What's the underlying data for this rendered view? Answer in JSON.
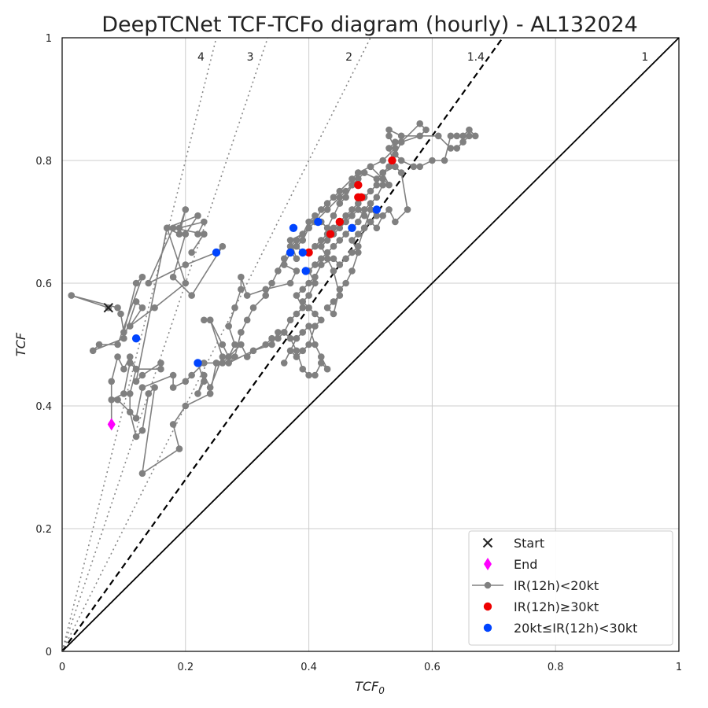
{
  "chart_data": {
    "type": "scatter",
    "title": "DeepTCNet TCF-TCFo diagram (hourly) - AL132024",
    "xlabel": "TCF",
    "xlabel_sub": "0",
    "ylabel": "TCF",
    "xlim": [
      0,
      1
    ],
    "ylim": [
      0,
      1
    ],
    "grid": true,
    "legend_position": "bottom-right",
    "x_ticks": [
      {
        "value": 0,
        "label": "0"
      },
      {
        "value": 0.2,
        "label": "0.2"
      },
      {
        "value": 0.4,
        "label": "0.4"
      },
      {
        "value": 0.6,
        "label": "0.6"
      },
      {
        "value": 0.8,
        "label": "0.8"
      },
      {
        "value": 1,
        "label": "1"
      }
    ],
    "y_ticks": [
      {
        "value": 0,
        "label": "0"
      },
      {
        "value": 0.2,
        "label": "0.2"
      },
      {
        "value": 0.4,
        "label": "0.4"
      },
      {
        "value": 0.6,
        "label": "0.6"
      },
      {
        "value": 0.8,
        "label": "0.8"
      },
      {
        "value": 1,
        "label": "1"
      }
    ],
    "reference_lines": [
      {
        "ratio": 1,
        "label": "1",
        "style": "solid"
      },
      {
        "ratio": 1.4,
        "label": "1.4",
        "style": "dashed"
      },
      {
        "ratio": 2,
        "label": "2",
        "style": "dotted"
      },
      {
        "ratio": 3,
        "label": "3",
        "style": "dotted"
      },
      {
        "ratio": 4,
        "label": "4",
        "style": "dotted"
      }
    ],
    "track": {
      "name": "IR(12h)<20kt",
      "color": "#808080",
      "points": [
        [
          0.075,
          0.56
        ],
        [
          0.015,
          0.58
        ],
        [
          0.09,
          0.56
        ],
        [
          0.095,
          0.55
        ],
        [
          0.1,
          0.52
        ],
        [
          0.12,
          0.6
        ],
        [
          0.13,
          0.61
        ],
        [
          0.09,
          0.5
        ],
        [
          0.06,
          0.5
        ],
        [
          0.05,
          0.49
        ],
        [
          0.1,
          0.51
        ],
        [
          0.12,
          0.57
        ],
        [
          0.13,
          0.56
        ],
        [
          0.11,
          0.53
        ],
        [
          0.15,
          0.56
        ],
        [
          0.2,
          0.6
        ],
        [
          0.17,
          0.69
        ],
        [
          0.19,
          0.68
        ],
        [
          0.2,
          0.72
        ],
        [
          0.19,
          0.69
        ],
        [
          0.23,
          0.7
        ],
        [
          0.22,
          0.68
        ],
        [
          0.23,
          0.68
        ],
        [
          0.21,
          0.65
        ],
        [
          0.23,
          0.68
        ],
        [
          0.18,
          0.69
        ],
        [
          0.14,
          0.6
        ],
        [
          0.2,
          0.63
        ],
        [
          0.25,
          0.65
        ],
        [
          0.26,
          0.66
        ],
        [
          0.21,
          0.58
        ],
        [
          0.18,
          0.61
        ],
        [
          0.2,
          0.68
        ],
        [
          0.22,
          0.71
        ],
        [
          0.17,
          0.69
        ],
        [
          0.12,
          0.44
        ],
        [
          0.13,
          0.45
        ],
        [
          0.16,
          0.47
        ],
        [
          0.16,
          0.46
        ],
        [
          0.12,
          0.46
        ],
        [
          0.11,
          0.47
        ],
        [
          0.1,
          0.42
        ],
        [
          0.08,
          0.41
        ],
        [
          0.09,
          0.41
        ],
        [
          0.12,
          0.38
        ],
        [
          0.13,
          0.43
        ],
        [
          0.18,
          0.45
        ],
        [
          0.18,
          0.43
        ],
        [
          0.2,
          0.44
        ],
        [
          0.21,
          0.45
        ],
        [
          0.23,
          0.47
        ],
        [
          0.25,
          0.47
        ],
        [
          0.22,
          0.47
        ],
        [
          0.23,
          0.44
        ],
        [
          0.22,
          0.42
        ],
        [
          0.23,
          0.45
        ],
        [
          0.24,
          0.43
        ],
        [
          0.26,
          0.48
        ],
        [
          0.24,
          0.54
        ],
        [
          0.23,
          0.54
        ],
        [
          0.24,
          0.54
        ],
        [
          0.26,
          0.5
        ],
        [
          0.27,
          0.48
        ],
        [
          0.28,
          0.5
        ],
        [
          0.27,
          0.53
        ],
        [
          0.28,
          0.56
        ],
        [
          0.29,
          0.59
        ],
        [
          0.29,
          0.61
        ],
        [
          0.3,
          0.58
        ],
        [
          0.33,
          0.59
        ],
        [
          0.37,
          0.6
        ],
        [
          0.38,
          0.62
        ],
        [
          0.36,
          0.63
        ],
        [
          0.37,
          0.65
        ],
        [
          0.38,
          0.64
        ],
        [
          0.37,
          0.67
        ],
        [
          0.39,
          0.68
        ],
        [
          0.4,
          0.7
        ],
        [
          0.41,
          0.71
        ],
        [
          0.42,
          0.7
        ],
        [
          0.43,
          0.69
        ],
        [
          0.44,
          0.71
        ],
        [
          0.45,
          0.73
        ],
        [
          0.46,
          0.74
        ],
        [
          0.47,
          0.76
        ],
        [
          0.48,
          0.78
        ],
        [
          0.5,
          0.79
        ],
        [
          0.52,
          0.77
        ],
        [
          0.53,
          0.76
        ],
        [
          0.52,
          0.78
        ],
        [
          0.54,
          0.79
        ],
        [
          0.53,
          0.82
        ],
        [
          0.54,
          0.83
        ],
        [
          0.55,
          0.83
        ],
        [
          0.58,
          0.86
        ],
        [
          0.59,
          0.85
        ],
        [
          0.58,
          0.84
        ],
        [
          0.55,
          0.83
        ],
        [
          0.54,
          0.81
        ],
        [
          0.55,
          0.8
        ],
        [
          0.57,
          0.79
        ],
        [
          0.58,
          0.79
        ],
        [
          0.6,
          0.8
        ],
        [
          0.62,
          0.8
        ],
        [
          0.63,
          0.84
        ],
        [
          0.64,
          0.84
        ],
        [
          0.65,
          0.84
        ],
        [
          0.66,
          0.85
        ],
        [
          0.67,
          0.84
        ],
        [
          0.66,
          0.84
        ],
        [
          0.65,
          0.83
        ],
        [
          0.64,
          0.82
        ],
        [
          0.63,
          0.82
        ],
        [
          0.61,
          0.84
        ],
        [
          0.55,
          0.84
        ],
        [
          0.53,
          0.85
        ],
        [
          0.53,
          0.84
        ],
        [
          0.54,
          0.82
        ],
        [
          0.52,
          0.8
        ],
        [
          0.5,
          0.79
        ],
        [
          0.48,
          0.78
        ],
        [
          0.47,
          0.77
        ],
        [
          0.45,
          0.75
        ],
        [
          0.44,
          0.74
        ],
        [
          0.43,
          0.73
        ],
        [
          0.42,
          0.72
        ],
        [
          0.41,
          0.7
        ],
        [
          0.4,
          0.69
        ],
        [
          0.39,
          0.67
        ],
        [
          0.38,
          0.66
        ],
        [
          0.39,
          0.65
        ],
        [
          0.4,
          0.65
        ],
        [
          0.41,
          0.66
        ],
        [
          0.42,
          0.67
        ],
        [
          0.43,
          0.68
        ],
        [
          0.44,
          0.69
        ],
        [
          0.45,
          0.7
        ],
        [
          0.46,
          0.71
        ],
        [
          0.47,
          0.72
        ],
        [
          0.48,
          0.73
        ],
        [
          0.49,
          0.74
        ],
        [
          0.5,
          0.75
        ],
        [
          0.51,
          0.76
        ],
        [
          0.52,
          0.76
        ],
        [
          0.51,
          0.74
        ],
        [
          0.5,
          0.73
        ],
        [
          0.49,
          0.72
        ],
        [
          0.48,
          0.7
        ],
        [
          0.47,
          0.69
        ],
        [
          0.46,
          0.68
        ],
        [
          0.45,
          0.67
        ],
        [
          0.44,
          0.66
        ],
        [
          0.43,
          0.65
        ],
        [
          0.42,
          0.64
        ],
        [
          0.41,
          0.63
        ],
        [
          0.4,
          0.62
        ],
        [
          0.41,
          0.6
        ],
        [
          0.4,
          0.58
        ],
        [
          0.39,
          0.57
        ],
        [
          0.4,
          0.56
        ],
        [
          0.41,
          0.55
        ],
        [
          0.42,
          0.54
        ],
        [
          0.41,
          0.53
        ],
        [
          0.4,
          0.5
        ],
        [
          0.39,
          0.49
        ],
        [
          0.38,
          0.48
        ],
        [
          0.37,
          0.49
        ],
        [
          0.36,
          0.47
        ],
        [
          0.38,
          0.51
        ],
        [
          0.39,
          0.52
        ],
        [
          0.4,
          0.53
        ],
        [
          0.41,
          0.5
        ],
        [
          0.42,
          0.48
        ],
        [
          0.43,
          0.46
        ],
        [
          0.42,
          0.47
        ],
        [
          0.41,
          0.45
        ],
        [
          0.4,
          0.45
        ],
        [
          0.39,
          0.46
        ],
        [
          0.38,
          0.49
        ],
        [
          0.37,
          0.51
        ],
        [
          0.36,
          0.52
        ],
        [
          0.35,
          0.51
        ],
        [
          0.34,
          0.51
        ],
        [
          0.33,
          0.5
        ],
        [
          0.27,
          0.47
        ],
        [
          0.28,
          0.48
        ],
        [
          0.29,
          0.52
        ],
        [
          0.3,
          0.54
        ],
        [
          0.31,
          0.56
        ],
        [
          0.33,
          0.58
        ],
        [
          0.34,
          0.6
        ],
        [
          0.35,
          0.62
        ],
        [
          0.36,
          0.64
        ],
        [
          0.37,
          0.66
        ],
        [
          0.38,
          0.67
        ],
        [
          0.39,
          0.68
        ],
        [
          0.4,
          0.69
        ],
        [
          0.41,
          0.7
        ],
        [
          0.43,
          0.72
        ],
        [
          0.45,
          0.74
        ],
        [
          0.46,
          0.75
        ],
        [
          0.47,
          0.76
        ],
        [
          0.48,
          0.77
        ],
        [
          0.49,
          0.78
        ],
        [
          0.51,
          0.77
        ],
        [
          0.52,
          0.78
        ],
        [
          0.53,
          0.79
        ],
        [
          0.54,
          0.79
        ],
        [
          0.55,
          0.78
        ],
        [
          0.56,
          0.72
        ],
        [
          0.54,
          0.7
        ],
        [
          0.53,
          0.72
        ],
        [
          0.52,
          0.71
        ],
        [
          0.51,
          0.69
        ],
        [
          0.5,
          0.7
        ],
        [
          0.49,
          0.71
        ],
        [
          0.48,
          0.72
        ],
        [
          0.47,
          0.71
        ],
        [
          0.46,
          0.7
        ],
        [
          0.45,
          0.69
        ],
        [
          0.44,
          0.68
        ],
        [
          0.43,
          0.67
        ],
        [
          0.42,
          0.66
        ],
        [
          0.43,
          0.64
        ],
        [
          0.44,
          0.62
        ],
        [
          0.45,
          0.58
        ],
        [
          0.44,
          0.57
        ],
        [
          0.43,
          0.56
        ],
        [
          0.44,
          0.55
        ],
        [
          0.45,
          0.59
        ],
        [
          0.46,
          0.6
        ],
        [
          0.47,
          0.62
        ],
        [
          0.48,
          0.65
        ],
        [
          0.47,
          0.67
        ],
        [
          0.48,
          0.68
        ],
        [
          0.49,
          0.69
        ],
        [
          0.5,
          0.7
        ],
        [
          0.51,
          0.71
        ],
        [
          0.5,
          0.72
        ],
        [
          0.49,
          0.69
        ],
        [
          0.48,
          0.66
        ],
        [
          0.47,
          0.65
        ],
        [
          0.46,
          0.64
        ],
        [
          0.45,
          0.63
        ],
        [
          0.44,
          0.64
        ],
        [
          0.42,
          0.63
        ],
        [
          0.41,
          0.61
        ],
        [
          0.4,
          0.6
        ],
        [
          0.39,
          0.59
        ],
        [
          0.38,
          0.58
        ],
        [
          0.39,
          0.56
        ],
        [
          0.38,
          0.55
        ],
        [
          0.37,
          0.54
        ],
        [
          0.36,
          0.52
        ],
        [
          0.35,
          0.52
        ],
        [
          0.34,
          0.5
        ],
        [
          0.31,
          0.49
        ],
        [
          0.3,
          0.48
        ],
        [
          0.29,
          0.5
        ],
        [
          0.27,
          0.48
        ],
        [
          0.26,
          0.47
        ],
        [
          0.25,
          0.47
        ],
        [
          0.24,
          0.42
        ],
        [
          0.2,
          0.4
        ],
        [
          0.18,
          0.37
        ],
        [
          0.19,
          0.33
        ],
        [
          0.13,
          0.29
        ],
        [
          0.15,
          0.43
        ],
        [
          0.14,
          0.42
        ],
        [
          0.13,
          0.36
        ],
        [
          0.12,
          0.35
        ],
        [
          0.11,
          0.39
        ],
        [
          0.11,
          0.42
        ],
        [
          0.12,
          0.46
        ],
        [
          0.11,
          0.48
        ],
        [
          0.1,
          0.46
        ],
        [
          0.09,
          0.48
        ],
        [
          0.08,
          0.44
        ],
        [
          0.08,
          0.37
        ]
      ]
    },
    "start": {
      "name": "Start",
      "x": 0.075,
      "y": 0.56
    },
    "end": {
      "name": "End",
      "x": 0.08,
      "y": 0.37
    },
    "high_rate": {
      "name": "IR(12h)≥30kt",
      "color": "#ee0000",
      "points": [
        [
          0.535,
          0.8
        ],
        [
          0.48,
          0.76
        ],
        [
          0.485,
          0.74
        ],
        [
          0.48,
          0.74
        ],
        [
          0.45,
          0.7
        ],
        [
          0.435,
          0.68
        ],
        [
          0.4,
          0.65
        ]
      ]
    },
    "mid_rate": {
      "name": "20kt≤IR(12h)<30kt",
      "color": "#0044ff",
      "points": [
        [
          0.51,
          0.72
        ],
        [
          0.47,
          0.69
        ],
        [
          0.415,
          0.7
        ],
        [
          0.375,
          0.69
        ],
        [
          0.37,
          0.65
        ],
        [
          0.39,
          0.65
        ],
        [
          0.395,
          0.62
        ],
        [
          0.25,
          0.65
        ],
        [
          0.22,
          0.47
        ],
        [
          0.12,
          0.51
        ]
      ]
    },
    "legend": [
      {
        "key": "start",
        "label": "Start",
        "marker": "x"
      },
      {
        "key": "end",
        "label": "End",
        "marker": "diamond"
      },
      {
        "key": "track",
        "label": "IR(12h)<20kt",
        "marker": "line-dot"
      },
      {
        "key": "high_rate",
        "label": "IR(12h)≥30kt",
        "marker": "dot"
      },
      {
        "key": "mid_rate",
        "label": "20kt≤IR(12h)<30kt",
        "marker": "dot"
      }
    ],
    "colors": {
      "start": "#222222",
      "end": "#ff00ff",
      "axis": "#000000",
      "grid": "#cccccc"
    }
  }
}
